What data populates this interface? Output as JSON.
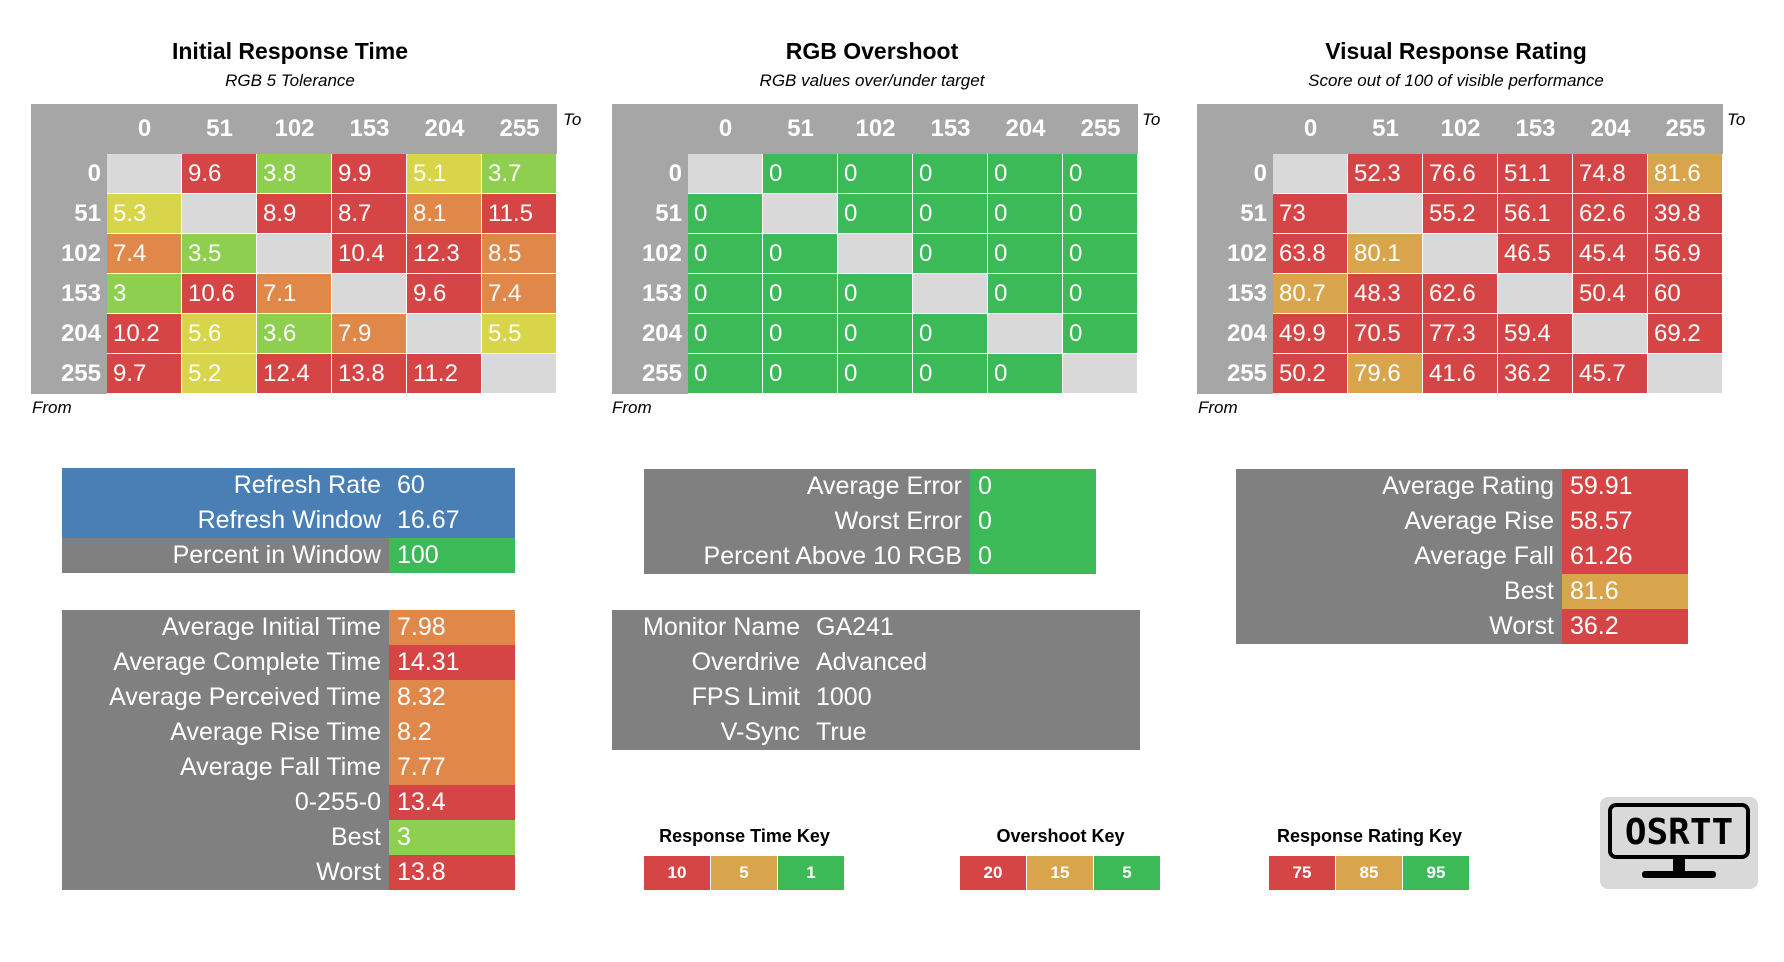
{
  "colors": {
    "red": "#d64545",
    "orange": "#e0874a",
    "gold": "#d9a54c",
    "yellow": "#d9d54a",
    "lime": "#8fcf4f",
    "green": "#3cba57",
    "gray": "#808080",
    "blue": "#4a7fb5",
    "header": "#a6a6a6",
    "diag": "#d9d9d9"
  },
  "axis_labels": [
    "0",
    "51",
    "102",
    "153",
    "204",
    "255"
  ],
  "to_label": "To",
  "from_label": "From",
  "panels": [
    {
      "title": "Initial Response Time",
      "subtitle": "RGB 5 Tolerance",
      "rows": [
        [
          "",
          "9.6",
          "3.8",
          "9.9",
          "5.1",
          "3.7"
        ],
        [
          "5.3",
          "",
          "8.9",
          "8.7",
          "8.1",
          "11.5"
        ],
        [
          "7.4",
          "3.5",
          "",
          "10.4",
          "12.3",
          "8.5"
        ],
        [
          "3",
          "10.6",
          "7.1",
          "",
          "9.6",
          "7.4"
        ],
        [
          "10.2",
          "5.6",
          "3.6",
          "7.9",
          "",
          "5.5"
        ],
        [
          "9.7",
          "5.2",
          "12.4",
          "13.8",
          "11.2",
          ""
        ]
      ],
      "colors": [
        [
          "diag",
          "red",
          "lime",
          "red",
          "yellow",
          "lime"
        ],
        [
          "yellow",
          "diag",
          "red",
          "red",
          "orange",
          "red"
        ],
        [
          "orange",
          "lime",
          "diag",
          "red",
          "red",
          "orange"
        ],
        [
          "lime",
          "red",
          "orange",
          "diag",
          "red",
          "orange"
        ],
        [
          "red",
          "yellow",
          "lime",
          "orange",
          "diag",
          "yellow"
        ],
        [
          "red",
          "yellow",
          "red",
          "red",
          "red",
          "diag"
        ]
      ]
    },
    {
      "title": "RGB Overshoot",
      "subtitle": "RGB values over/under target",
      "rows": [
        [
          "",
          "0",
          "0",
          "0",
          "0",
          "0"
        ],
        [
          "0",
          "",
          "0",
          "0",
          "0",
          "0"
        ],
        [
          "0",
          "0",
          "",
          "0",
          "0",
          "0"
        ],
        [
          "0",
          "0",
          "0",
          "",
          "0",
          "0"
        ],
        [
          "0",
          "0",
          "0",
          "0",
          "",
          "0"
        ],
        [
          "0",
          "0",
          "0",
          "0",
          "0",
          ""
        ]
      ],
      "colors": [
        [
          "diag",
          "green",
          "green",
          "green",
          "green",
          "green"
        ],
        [
          "green",
          "diag",
          "green",
          "green",
          "green",
          "green"
        ],
        [
          "green",
          "green",
          "diag",
          "green",
          "green",
          "green"
        ],
        [
          "green",
          "green",
          "green",
          "diag",
          "green",
          "green"
        ],
        [
          "green",
          "green",
          "green",
          "green",
          "diag",
          "green"
        ],
        [
          "green",
          "green",
          "green",
          "green",
          "green",
          "diag"
        ]
      ]
    },
    {
      "title": "Visual Response Rating",
      "subtitle": "Score out of 100 of visible performance",
      "rows": [
        [
          "",
          "52.3",
          "76.6",
          "51.1",
          "74.8",
          "81.6"
        ],
        [
          "73",
          "",
          "55.2",
          "56.1",
          "62.6",
          "39.8"
        ],
        [
          "63.8",
          "80.1",
          "",
          "46.5",
          "45.4",
          "56.9"
        ],
        [
          "80.7",
          "48.3",
          "62.6",
          "",
          "50.4",
          "60"
        ],
        [
          "49.9",
          "70.5",
          "77.3",
          "59.4",
          "",
          "69.2"
        ],
        [
          "50.2",
          "79.6",
          "41.6",
          "36.2",
          "45.7",
          ""
        ]
      ],
      "colors": [
        [
          "diag",
          "red",
          "red",
          "red",
          "red",
          "gold"
        ],
        [
          "red",
          "diag",
          "red",
          "red",
          "red",
          "red"
        ],
        [
          "red",
          "gold",
          "diag",
          "red",
          "red",
          "red"
        ],
        [
          "gold",
          "red",
          "red",
          "diag",
          "red",
          "red"
        ],
        [
          "red",
          "red",
          "red",
          "red",
          "diag",
          "red"
        ],
        [
          "red",
          "gold",
          "red",
          "red",
          "red",
          "diag"
        ]
      ]
    }
  ],
  "refresh_box": [
    {
      "label": "Refresh Rate",
      "value": "60",
      "label_color": "blue",
      "value_color": "blue"
    },
    {
      "label": "Refresh Window",
      "value": "16.67",
      "label_color": "blue",
      "value_color": "blue"
    },
    {
      "label": "Percent in Window",
      "value": "100",
      "label_color": "gray",
      "value_color": "green"
    }
  ],
  "time_box": [
    {
      "label": "Average Initial Time",
      "value": "7.98",
      "label_color": "gray",
      "value_color": "orange"
    },
    {
      "label": "Average Complete Time",
      "value": "14.31",
      "label_color": "gray",
      "value_color": "red"
    },
    {
      "label": "Average Perceived Time",
      "value": "8.32",
      "label_color": "gray",
      "value_color": "orange"
    },
    {
      "label": "Average Rise Time",
      "value": "8.2",
      "label_color": "gray",
      "value_color": "orange"
    },
    {
      "label": "Average Fall Time",
      "value": "7.77",
      "label_color": "gray",
      "value_color": "orange"
    },
    {
      "label": "0-255-0",
      "value": "13.4",
      "label_color": "gray",
      "value_color": "red"
    },
    {
      "label": "Best",
      "value": "3",
      "label_color": "gray",
      "value_color": "lime"
    },
    {
      "label": "Worst",
      "value": "13.8",
      "label_color": "gray",
      "value_color": "red"
    }
  ],
  "error_box": [
    {
      "label": "Average Error",
      "value": "0",
      "label_color": "gray",
      "value_color": "green"
    },
    {
      "label": "Worst Error",
      "value": "0",
      "label_color": "gray",
      "value_color": "green"
    },
    {
      "label": "Percent Above 10 RGB",
      "value": "0",
      "label_color": "gray",
      "value_color": "green"
    }
  ],
  "monitor_box": [
    {
      "label": "Monitor Name",
      "value": "GA241",
      "label_color": "gray",
      "value_color": "gray"
    },
    {
      "label": "Overdrive",
      "value": "Advanced",
      "label_color": "gray",
      "value_color": "gray"
    },
    {
      "label": "FPS Limit",
      "value": "1000",
      "label_color": "gray",
      "value_color": "gray"
    },
    {
      "label": "V-Sync",
      "value": "True",
      "label_color": "gray",
      "value_color": "gray"
    }
  ],
  "rating_box": [
    {
      "label": "Average Rating",
      "value": "59.91",
      "label_color": "gray",
      "value_color": "red"
    },
    {
      "label": "Average Rise",
      "value": "58.57",
      "label_color": "gray",
      "value_color": "red"
    },
    {
      "label": "Average Fall",
      "value": "61.26",
      "label_color": "gray",
      "value_color": "red"
    },
    {
      "label": "Best",
      "value": "81.6",
      "label_color": "gray",
      "value_color": "gold"
    },
    {
      "label": "Worst",
      "value": "36.2",
      "label_color": "gray",
      "value_color": "red"
    }
  ],
  "keys": [
    {
      "title": "Response Time Key",
      "items": [
        {
          "text": "10",
          "color": "red"
        },
        {
          "text": "5",
          "color": "gold"
        },
        {
          "text": "1",
          "color": "green"
        }
      ]
    },
    {
      "title": "Overshoot Key",
      "items": [
        {
          "text": "20",
          "color": "red"
        },
        {
          "text": "15",
          "color": "gold"
        },
        {
          "text": "5",
          "color": "green"
        }
      ]
    },
    {
      "title": "Response Rating Key",
      "items": [
        {
          "text": "75",
          "color": "red"
        },
        {
          "text": "85",
          "color": "gold"
        },
        {
          "text": "95",
          "color": "green"
        }
      ]
    }
  ],
  "logo": {
    "text": "OSRTT"
  }
}
